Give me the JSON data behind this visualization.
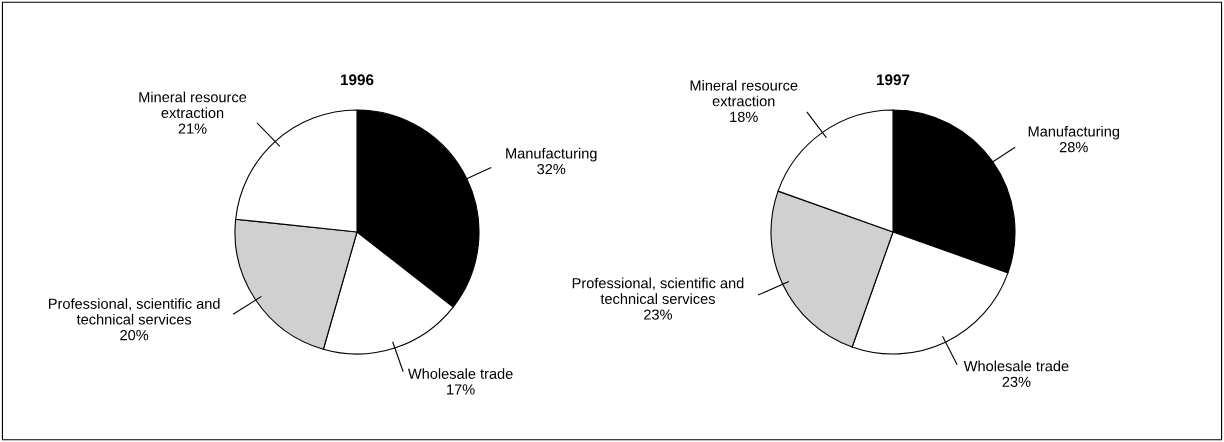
{
  "chart_data": [
    {
      "type": "pie",
      "title": "1996",
      "categories": [
        "Manufacturing",
        "Wholesale trade",
        "Professional, scientific and\ntechnical services",
        "Mineral resource\nextraction"
      ],
      "values": [
        32,
        17,
        20,
        21
      ],
      "value_labels": [
        "32%",
        "17%",
        "20%",
        "21%"
      ],
      "colors": [
        "#000000",
        "#ffffff",
        "#d0d0d0",
        "#ffffff"
      ]
    },
    {
      "type": "pie",
      "title": "1997",
      "categories": [
        "Manufacturing",
        "Wholesale trade",
        "Professional, scientific and\ntechnical services",
        "Mineral resource\nextraction"
      ],
      "values": [
        28,
        23,
        23,
        18
      ],
      "value_labels": [
        "28%",
        "23%",
        "23%",
        "18%"
      ],
      "colors": [
        "#000000",
        "#ffffff",
        "#d0d0d0",
        "#ffffff"
      ]
    }
  ]
}
